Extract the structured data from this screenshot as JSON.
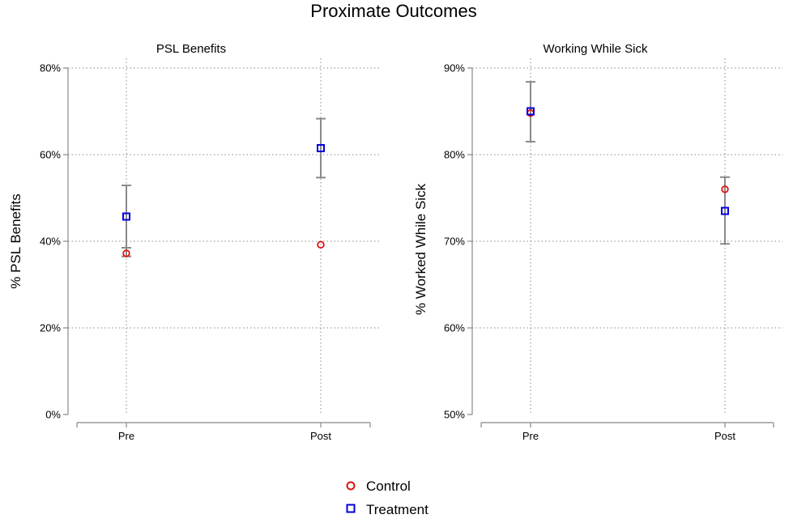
{
  "figure": {
    "title": "Proximate Outcomes",
    "legend": [
      {
        "label": "Control",
        "color": "#dd1111",
        "marker": "circle"
      },
      {
        "label": "Treatment",
        "color": "#0000dd",
        "marker": "square"
      }
    ]
  },
  "chart_data": [
    {
      "type": "scatter",
      "title": "PSL Benefits",
      "ylabel": "% PSL Benefits",
      "xlabel": "",
      "categories": [
        "Pre",
        "Post"
      ],
      "ylim": [
        0,
        80
      ],
      "yticks": [
        0,
        20,
        40,
        60,
        80
      ],
      "ytick_labels": [
        "0%",
        "20%",
        "40%",
        "60%",
        "80%"
      ],
      "grid": true,
      "series": [
        {
          "name": "Control",
          "values": [
            37.2,
            39.2
          ],
          "ci_low": [
            36.5,
            null
          ],
          "ci_high": [
            38.5,
            null
          ]
        },
        {
          "name": "Treatment",
          "values": [
            45.7,
            61.5
          ],
          "ci_low": [
            38.5,
            54.7
          ],
          "ci_high": [
            52.9,
            68.3
          ]
        }
      ]
    },
    {
      "type": "scatter",
      "title": "Working While Sick",
      "ylabel": "% Worked While Sick",
      "xlabel": "",
      "categories": [
        "Pre",
        "Post"
      ],
      "ylim": [
        50,
        90
      ],
      "yticks": [
        50,
        60,
        70,
        80,
        90
      ],
      "ytick_labels": [
        "50%",
        "60%",
        "70%",
        "80%",
        "90%"
      ],
      "grid": true,
      "series": [
        {
          "name": "Control",
          "values": [
            84.8,
            76.0
          ],
          "ci_low": [
            null,
            null
          ],
          "ci_high": [
            null,
            null
          ]
        },
        {
          "name": "Treatment",
          "values": [
            85.0,
            73.5
          ],
          "ci_low": [
            81.5,
            69.7
          ],
          "ci_high": [
            88.4,
            77.4
          ]
        }
      ]
    }
  ]
}
